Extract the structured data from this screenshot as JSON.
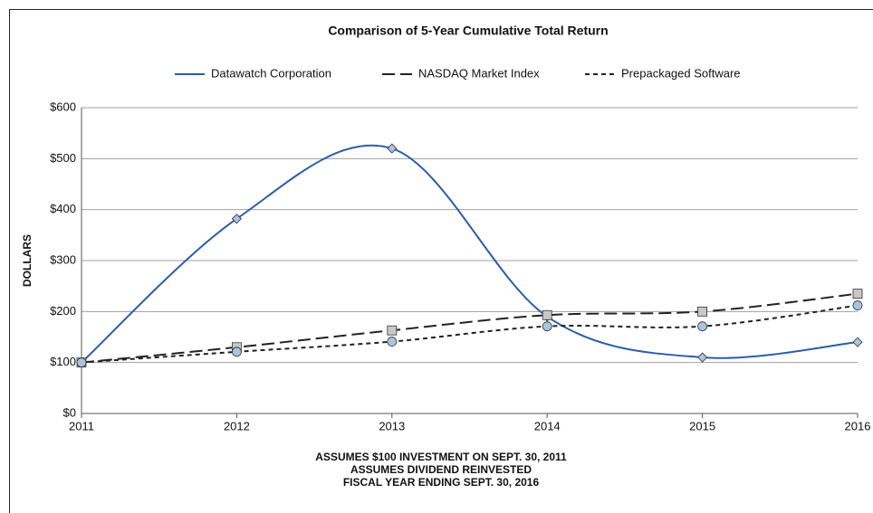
{
  "chart_data": {
    "type": "line",
    "title": "Comparison of 5-Year Cumulative Total Return",
    "y_label": "DOLLARS",
    "notes": [
      "ASSUMES $100 INVESTMENT ON SEPT. 30, 2011",
      "ASSUMES DIVIDEND REINVESTED",
      "FISCAL YEAR ENDING SEPT. 30, 2016"
    ],
    "categories": [
      "2011",
      "2012",
      "2013",
      "2014",
      "2015",
      "2016"
    ],
    "series": [
      {
        "name": "Datawatch Corporation",
        "color": "#2a5fa8",
        "dash": "solid",
        "marker": "diamond",
        "marker_color": "#a9c4e0",
        "values": [
          100,
          382,
          520,
          190,
          110,
          140
        ]
      },
      {
        "name": "NASDAQ Market Index",
        "color": "#222222",
        "dash": "long",
        "marker": "square",
        "marker_color": "#c8c8c8",
        "values": [
          100,
          130,
          163,
          193,
          200,
          235
        ]
      },
      {
        "name": "Prepackaged Software",
        "color": "#222222",
        "dash": "short",
        "marker": "circle",
        "marker_color": "#a9c4e0",
        "values": [
          100,
          121,
          141,
          171,
          171,
          212
        ]
      }
    ],
    "ylim": [
      0,
      600
    ],
    "yticks": [
      {
        "value": 0,
        "label": "$0"
      },
      {
        "value": 100,
        "label": "$100"
      },
      {
        "value": 200,
        "label": "$200"
      },
      {
        "value": 300,
        "label": "$300"
      },
      {
        "value": 400,
        "label": "$400"
      },
      {
        "value": 500,
        "label": "$500"
      },
      {
        "value": 600,
        "label": "$600"
      }
    ],
    "grid": true,
    "smooth": true,
    "legend": "top"
  }
}
